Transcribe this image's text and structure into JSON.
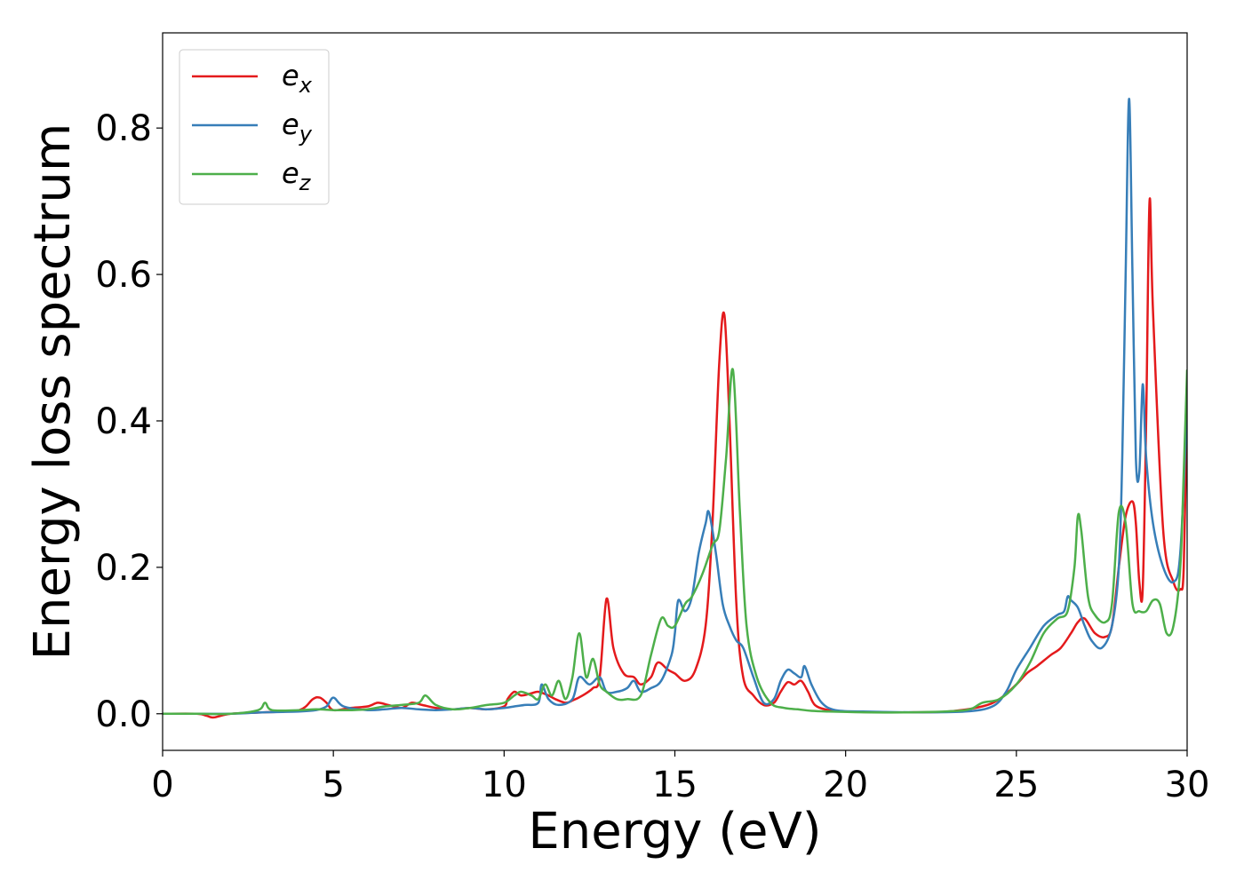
{
  "chart_data": {
    "type": "line",
    "title": "",
    "xlabel": "Energy (eV)",
    "ylabel": "Energy loss spectrum",
    "xlim": [
      0,
      30
    ],
    "ylim": [
      -0.05,
      0.93
    ],
    "xticks": [
      0,
      5,
      10,
      15,
      20,
      25,
      30
    ],
    "xtick_labels": [
      "0",
      "5",
      "10",
      "15",
      "20",
      "25",
      "30"
    ],
    "yticks": [
      0.0,
      0.2,
      0.4,
      0.6,
      0.8
    ],
    "ytick_labels": [
      "0.0",
      "0.2",
      "0.4",
      "0.6",
      "0.8"
    ],
    "grid": false,
    "legend_position": "top-left",
    "series": [
      {
        "name": "e",
        "subscript": "x",
        "color": "#e41a1c",
        "x": [
          0,
          1.0,
          1.3,
          1.5,
          2.0,
          3.0,
          4.0,
          4.4,
          4.6,
          4.8,
          5.0,
          5.5,
          6.0,
          6.3,
          6.6,
          7.0,
          7.3,
          7.6,
          8.0,
          8.5,
          9.0,
          9.5,
          10.0,
          10.1,
          10.3,
          10.5,
          10.8,
          11.0,
          11.3,
          11.5,
          11.8,
          12.0,
          12.3,
          12.6,
          12.8,
          13.0,
          13.2,
          13.5,
          13.8,
          14.0,
          14.3,
          14.5,
          14.8,
          15.0,
          15.3,
          15.6,
          15.9,
          16.1,
          16.3,
          16.45,
          16.6,
          16.8,
          17.0,
          17.3,
          17.6,
          17.9,
          18.1,
          18.3,
          18.5,
          18.7,
          18.9,
          19.1,
          19.5,
          20.0,
          21.0,
          22.0,
          23.0,
          24.0,
          24.5,
          25.0,
          25.3,
          25.6,
          26.0,
          26.3,
          26.6,
          26.8,
          27.0,
          27.3,
          27.6,
          27.8,
          28.0,
          28.2,
          28.4,
          28.5,
          28.6,
          28.7,
          28.8,
          28.9,
          29.0,
          29.3,
          29.6,
          29.8,
          29.9,
          30.0
        ],
        "y": [
          0,
          0,
          -0.003,
          -0.005,
          0.0,
          0.002,
          0.005,
          0.02,
          0.022,
          0.015,
          0.005,
          0.008,
          0.01,
          0.015,
          0.012,
          0.008,
          0.015,
          0.012,
          0.008,
          0.006,
          0.008,
          0.006,
          0.01,
          0.02,
          0.03,
          0.025,
          0.028,
          0.03,
          0.025,
          0.02,
          0.015,
          0.018,
          0.025,
          0.035,
          0.05,
          0.157,
          0.09,
          0.055,
          0.05,
          0.04,
          0.05,
          0.07,
          0.06,
          0.055,
          0.045,
          0.06,
          0.12,
          0.26,
          0.48,
          0.545,
          0.4,
          0.15,
          0.05,
          0.025,
          0.012,
          0.015,
          0.03,
          0.043,
          0.04,
          0.045,
          0.03,
          0.012,
          0.005,
          0.003,
          0.002,
          0.002,
          0.003,
          0.01,
          0.02,
          0.04,
          0.055,
          0.065,
          0.08,
          0.09,
          0.11,
          0.125,
          0.13,
          0.11,
          0.105,
          0.12,
          0.2,
          0.27,
          0.29,
          0.26,
          0.18,
          0.17,
          0.4,
          0.7,
          0.55,
          0.25,
          0.18,
          0.17,
          0.2,
          0.43
        ]
      },
      {
        "name": "e",
        "subscript": "y",
        "color": "#377eb8",
        "x": [
          0,
          1.0,
          2.0,
          3.0,
          4.0,
          4.5,
          4.8,
          5.0,
          5.3,
          6.0,
          6.5,
          7.0,
          7.5,
          8.0,
          8.5,
          9.0,
          9.5,
          10.0,
          10.3,
          10.6,
          11.0,
          11.1,
          11.3,
          11.6,
          12.0,
          12.2,
          12.5,
          12.8,
          13.0,
          13.3,
          13.6,
          13.8,
          14.0,
          14.3,
          14.6,
          14.9,
          15.0,
          15.1,
          15.3,
          15.5,
          15.7,
          15.9,
          16.0,
          16.2,
          16.4,
          16.6,
          16.8,
          17.0,
          17.3,
          17.6,
          17.9,
          18.1,
          18.3,
          18.5,
          18.7,
          18.8,
          19.0,
          19.3,
          19.7,
          20.5,
          22.0,
          23.5,
          24.3,
          24.7,
          25.0,
          25.4,
          25.8,
          26.2,
          26.4,
          26.5,
          26.6,
          26.8,
          27.0,
          27.2,
          27.5,
          27.8,
          28.0,
          28.1,
          28.2,
          28.3,
          28.4,
          28.5,
          28.6,
          28.7,
          28.8,
          29.0,
          29.3,
          29.6,
          29.8,
          30.0
        ],
        "y": [
          0,
          0,
          0,
          0.002,
          0.003,
          0.005,
          0.01,
          0.022,
          0.01,
          0.005,
          0.006,
          0.008,
          0.006,
          0.005,
          0.006,
          0.008,
          0.006,
          0.008,
          0.01,
          0.012,
          0.015,
          0.04,
          0.02,
          0.012,
          0.02,
          0.05,
          0.04,
          0.05,
          0.03,
          0.03,
          0.035,
          0.045,
          0.03,
          0.035,
          0.045,
          0.08,
          0.11,
          0.155,
          0.14,
          0.16,
          0.22,
          0.26,
          0.275,
          0.22,
          0.15,
          0.12,
          0.1,
          0.09,
          0.05,
          0.015,
          0.02,
          0.045,
          0.06,
          0.055,
          0.05,
          0.065,
          0.04,
          0.015,
          0.005,
          0.003,
          0.002,
          0.003,
          0.01,
          0.03,
          0.06,
          0.09,
          0.12,
          0.135,
          0.14,
          0.16,
          0.155,
          0.145,
          0.12,
          0.1,
          0.09,
          0.12,
          0.2,
          0.35,
          0.6,
          0.84,
          0.6,
          0.35,
          0.33,
          0.45,
          0.35,
          0.26,
          0.2,
          0.18,
          0.22,
          0.42
        ]
      },
      {
        "name": "e",
        "subscript": "z",
        "color": "#4daf4a",
        "x": [
          0,
          1.0,
          2.0,
          2.8,
          3.0,
          3.2,
          4.0,
          4.5,
          5.0,
          5.5,
          6.0,
          6.5,
          7.0,
          7.5,
          7.7,
          8.0,
          8.5,
          9.0,
          9.5,
          10.0,
          10.3,
          10.5,
          10.8,
          11.0,
          11.2,
          11.4,
          11.6,
          11.8,
          12.0,
          12.2,
          12.4,
          12.6,
          12.8,
          13.0,
          13.3,
          13.6,
          14.0,
          14.3,
          14.6,
          14.8,
          15.0,
          15.3,
          15.5,
          15.8,
          16.1,
          16.3,
          16.5,
          16.7,
          16.9,
          17.1,
          17.4,
          17.8,
          18.2,
          18.6,
          19.0,
          19.5,
          20.5,
          22.0,
          23.5,
          24.0,
          24.5,
          25.0,
          25.4,
          25.8,
          26.2,
          26.5,
          26.7,
          26.8,
          26.9,
          27.1,
          27.3,
          27.6,
          27.8,
          28.0,
          28.2,
          28.4,
          28.6,
          28.8,
          29.0,
          29.2,
          29.4,
          29.6,
          29.8,
          29.9,
          30.0
        ],
        "y": [
          0,
          0,
          0,
          0.005,
          0.015,
          0.005,
          0.005,
          0.006,
          0.005,
          0.005,
          0.006,
          0.01,
          0.012,
          0.015,
          0.025,
          0.012,
          0.006,
          0.008,
          0.012,
          0.015,
          0.025,
          0.03,
          0.025,
          0.02,
          0.04,
          0.025,
          0.045,
          0.02,
          0.05,
          0.11,
          0.05,
          0.075,
          0.04,
          0.03,
          0.02,
          0.02,
          0.025,
          0.08,
          0.13,
          0.12,
          0.12,
          0.15,
          0.16,
          0.19,
          0.23,
          0.25,
          0.35,
          0.47,
          0.28,
          0.12,
          0.05,
          0.015,
          0.008,
          0.006,
          0.004,
          0.003,
          0.002,
          0.002,
          0.005,
          0.015,
          0.02,
          0.04,
          0.07,
          0.11,
          0.13,
          0.14,
          0.2,
          0.27,
          0.25,
          0.16,
          0.135,
          0.125,
          0.15,
          0.275,
          0.26,
          0.15,
          0.14,
          0.14,
          0.155,
          0.15,
          0.11,
          0.12,
          0.2,
          0.33,
          0.47
        ]
      }
    ]
  }
}
